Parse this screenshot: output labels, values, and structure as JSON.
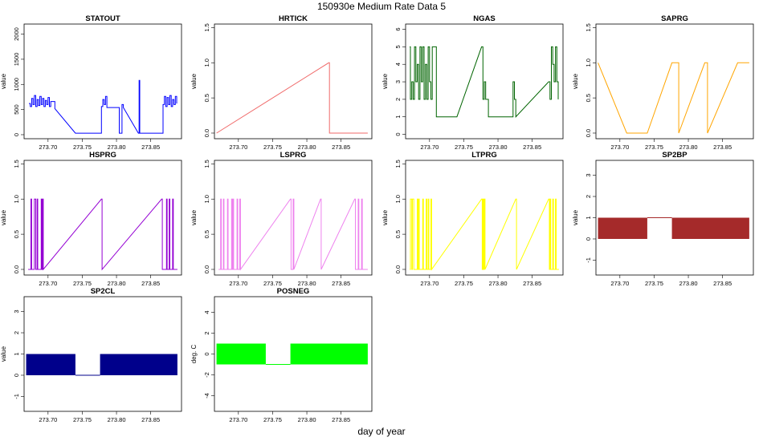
{
  "figure": {
    "title": "150930e   Medium Rate Data 5",
    "xlabel": "day of year"
  },
  "chart_data": [
    {
      "type": "line",
      "title": "STATOUT",
      "ylabel": "value",
      "color": "#0000ff",
      "xlim": [
        273.665,
        273.895
      ],
      "ylim": [
        -80,
        2200
      ],
      "xticks": [
        "273.70",
        "273.75",
        "273.80",
        "273.85"
      ],
      "xtick_values": [
        273.7,
        273.75,
        273.8,
        273.85
      ],
      "yticks": [
        "0",
        "500",
        "1000",
        "1500",
        "2000"
      ],
      "ytick_values": [
        0,
        500,
        1000,
        1500,
        2000
      ],
      "step": true,
      "x": [
        273.672,
        273.674,
        273.676,
        273.678,
        273.68,
        273.682,
        273.684,
        273.686,
        273.688,
        273.69,
        273.692,
        273.694,
        273.696,
        273.698,
        273.7,
        273.702,
        273.704,
        273.71,
        273.74,
        273.776,
        273.778,
        273.78,
        273.782,
        273.784,
        273.786,
        273.804,
        273.806,
        273.808,
        273.81,
        273.832,
        273.833,
        273.834,
        273.866,
        273.868,
        273.87,
        273.872,
        273.874,
        273.876,
        273.878,
        273.88,
        273.882,
        273.884,
        273.886,
        273.888
      ],
      "y": [
        620,
        560,
        720,
        600,
        780,
        560,
        700,
        580,
        760,
        600,
        720,
        560,
        680,
        600,
        740,
        560,
        660,
        520,
        30,
        30,
        560,
        700,
        600,
        760,
        540,
        30,
        30,
        600,
        540,
        30,
        1080,
        30,
        30,
        600,
        760,
        560,
        740,
        600,
        780,
        560,
        700,
        600,
        760,
        620
      ]
    },
    {
      "type": "line",
      "title": "HRTICK",
      "ylabel": "value",
      "color": "#f06a6a",
      "xlim": [
        273.665,
        273.895
      ],
      "ylim": [
        -0.08,
        1.55
      ],
      "xticks": [
        "273.70",
        "273.75",
        "273.80",
        "273.85"
      ],
      "xtick_values": [
        273.7,
        273.75,
        273.8,
        273.85
      ],
      "yticks": [
        "0.0",
        "0.5",
        "1.0",
        "1.5"
      ],
      "ytick_values": [
        0,
        0.5,
        1.0,
        1.5
      ],
      "step": true,
      "x": [
        273.668,
        273.832,
        273.833,
        273.889
      ],
      "y": [
        0,
        1,
        0,
        0
      ]
    },
    {
      "type": "line",
      "title": "NGAS",
      "ylabel": "value",
      "color": "#006400",
      "xlim": [
        273.665,
        273.895
      ],
      "ylim": [
        -0.25,
        6.3
      ],
      "xticks": [
        "273.70",
        "273.75",
        "273.80",
        "273.85"
      ],
      "xtick_values": [
        273.7,
        273.75,
        273.8,
        273.85
      ],
      "yticks": [
        "0",
        "1",
        "2",
        "3",
        "4",
        "5",
        "6"
      ],
      "ytick_values": [
        0,
        1,
        2,
        3,
        4,
        5,
        6
      ],
      "step": true,
      "x": [
        273.671,
        273.672,
        273.674,
        273.676,
        273.678,
        273.68,
        273.682,
        273.684,
        273.686,
        273.688,
        273.69,
        273.692,
        273.694,
        273.696,
        273.698,
        273.7,
        273.702,
        273.704,
        273.706,
        273.71,
        273.74,
        273.776,
        273.778,
        273.78,
        273.782,
        273.786,
        273.82,
        273.822,
        273.824,
        273.826,
        273.874,
        273.876,
        273.878,
        273.88,
        273.882,
        273.884,
        273.886,
        273.888
      ],
      "y": [
        5,
        2,
        3,
        2,
        5,
        3,
        4,
        2,
        5,
        3,
        5,
        2,
        4,
        2,
        5,
        3,
        2,
        5,
        5,
        1,
        1,
        5,
        2,
        3,
        2,
        1,
        1,
        3,
        2,
        1,
        3,
        2,
        5,
        4,
        3,
        5,
        3,
        2
      ]
    },
    {
      "type": "line",
      "title": "SAPRG",
      "ylabel": "value",
      "color": "#ffa500",
      "xlim": [
        273.665,
        273.895
      ],
      "ylim": [
        -0.08,
        1.55
      ],
      "xticks": [
        "273.70",
        "273.75",
        "273.80",
        "273.85"
      ],
      "xtick_values": [
        273.7,
        273.75,
        273.8,
        273.85
      ],
      "yticks": [
        "0.0",
        "0.5",
        "1.0",
        "1.5"
      ],
      "ytick_values": [
        0,
        0.5,
        1.0,
        1.5
      ],
      "step": true,
      "x": [
        273.668,
        273.71,
        273.74,
        273.776,
        273.786,
        273.824,
        273.828,
        273.872,
        273.889
      ],
      "y": [
        1,
        0,
        0,
        1,
        0,
        1,
        0,
        1,
        1
      ]
    },
    {
      "type": "line",
      "title": "HSPRG",
      "ylabel": "value",
      "color": "#9400d3",
      "xlim": [
        273.665,
        273.895
      ],
      "ylim": [
        -0.08,
        1.55
      ],
      "xticks": [
        "273.70",
        "273.75",
        "273.80",
        "273.85"
      ],
      "xtick_values": [
        273.7,
        273.75,
        273.8,
        273.85
      ],
      "yticks": [
        "0.0",
        "0.5",
        "1.0",
        "1.5"
      ],
      "ytick_values": [
        0,
        0.5,
        1.0,
        1.5
      ],
      "step": true,
      "x": [
        273.671,
        273.675,
        273.676,
        273.68,
        273.682,
        273.684,
        273.685,
        273.69,
        273.691,
        273.692,
        273.693,
        273.778,
        273.779,
        273.866,
        273.867,
        273.873,
        273.874,
        273.877,
        273.878,
        273.882,
        273.883,
        273.889
      ],
      "y": [
        0,
        1,
        0,
        1,
        0,
        1,
        0,
        1,
        0,
        1,
        0,
        1,
        0,
        1,
        0,
        1,
        0,
        1,
        0,
        1,
        0,
        0
      ]
    },
    {
      "type": "line",
      "title": "LSPRG",
      "ylabel": "value",
      "color": "#ee82ee",
      "xlim": [
        273.665,
        273.895
      ],
      "ylim": [
        -0.08,
        1.55
      ],
      "xticks": [
        "273.70",
        "273.75",
        "273.80",
        "273.85"
      ],
      "xtick_values": [
        273.7,
        273.75,
        273.8,
        273.85
      ],
      "yticks": [
        "0.0",
        "0.5",
        "1.0",
        "1.5"
      ],
      "ytick_values": [
        0,
        0.5,
        1.0,
        1.5
      ],
      "step": true,
      "x": [
        273.671,
        273.674,
        273.675,
        273.678,
        273.679,
        273.684,
        273.685,
        273.69,
        273.691,
        273.692,
        273.693,
        273.698,
        273.699,
        273.702,
        273.703,
        273.776,
        273.777,
        273.78,
        273.781,
        273.82,
        273.821,
        273.87,
        273.871,
        273.875,
        273.876,
        273.88,
        273.881,
        273.889
      ],
      "y": [
        0,
        1,
        0,
        1,
        0,
        1,
        0,
        1,
        0,
        1,
        0,
        1,
        0,
        1,
        0,
        1,
        0,
        1,
        0,
        1,
        0,
        1,
        0,
        1,
        0,
        1,
        0,
        0
      ]
    },
    {
      "type": "line",
      "title": "LTPRG",
      "ylabel": "value",
      "color": "#ffff00",
      "xlim": [
        273.665,
        273.895
      ],
      "ylim": [
        -0.08,
        1.55
      ],
      "xticks": [
        "273.70",
        "273.75",
        "273.80",
        "273.85"
      ],
      "xtick_values": [
        273.7,
        273.75,
        273.8,
        273.85
      ],
      "yticks": [
        "0.0",
        "0.5",
        "1.0",
        "1.5"
      ],
      "ytick_values": [
        0,
        0.5,
        1.0,
        1.5
      ],
      "step": true,
      "x": [
        273.671,
        273.672,
        273.674,
        273.675,
        273.677,
        273.682,
        273.683,
        273.684,
        273.685,
        273.69,
        273.691,
        273.695,
        273.696,
        273.698,
        273.699,
        273.702,
        273.703,
        273.776,
        273.777,
        273.778,
        273.779,
        273.78,
        273.781,
        273.826,
        273.827,
        273.874,
        273.875,
        273.876,
        273.877,
        273.88,
        273.881,
        273.884,
        273.885,
        273.889
      ],
      "y": [
        0,
        1,
        0,
        1,
        0,
        1,
        0,
        1,
        0,
        1,
        0,
        1,
        0,
        1,
        0,
        1,
        0,
        1,
        0,
        1,
        0,
        1,
        0,
        1,
        0,
        1,
        0,
        1,
        0,
        1,
        0,
        1,
        0,
        0
      ]
    },
    {
      "type": "area",
      "title": "SP2BP",
      "ylabel": "value",
      "color": "#a52a2a",
      "xlim": [
        273.665,
        273.895
      ],
      "ylim": [
        -1.7,
        3.7
      ],
      "xticks": [
        "273.70",
        "273.75",
        "273.80",
        "273.85"
      ],
      "xtick_values": [
        273.7,
        273.75,
        273.8,
        273.85
      ],
      "yticks": [
        "-1",
        "0",
        "1",
        "2",
        "3"
      ],
      "ytick_values": [
        -1,
        0,
        1,
        2,
        3
      ],
      "bands": [
        [
          273.668,
          273.74,
          0,
          1
        ],
        [
          273.776,
          273.889,
          0,
          1
        ]
      ],
      "line": [
        [
          273.74,
          1
        ],
        [
          273.776,
          1
        ]
      ]
    },
    {
      "type": "area",
      "title": "SP2CL",
      "ylabel": "value",
      "color": "#00008b",
      "xlim": [
        273.665,
        273.895
      ],
      "ylim": [
        -1.7,
        3.7
      ],
      "xticks": [
        "273.70",
        "273.75",
        "273.80",
        "273.85"
      ],
      "xtick_values": [
        273.7,
        273.75,
        273.8,
        273.85
      ],
      "yticks": [
        "-1",
        "0",
        "1",
        "2",
        "3"
      ],
      "ytick_values": [
        -1,
        0,
        1,
        2,
        3
      ],
      "bands": [
        [
          273.668,
          273.74,
          0,
          1
        ],
        [
          273.776,
          273.889,
          0,
          1
        ]
      ],
      "line": [
        [
          273.74,
          0
        ],
        [
          273.776,
          0
        ]
      ]
    },
    {
      "type": "area",
      "title": "POSNEG",
      "ylabel": "deg. C",
      "color": "#00ff00",
      "xlim": [
        273.665,
        273.895
      ],
      "ylim": [
        -5.5,
        5.5
      ],
      "xticks": [
        "273.70",
        "273.75",
        "273.80",
        "273.85"
      ],
      "xtick_values": [
        273.7,
        273.75,
        273.8,
        273.85
      ],
      "yticks": [
        "-4",
        "-2",
        "0",
        "2",
        "4"
      ],
      "ytick_values": [
        -4,
        -2,
        0,
        2,
        4
      ],
      "bands": [
        [
          273.668,
          273.74,
          -1,
          1
        ],
        [
          273.776,
          273.889,
          -1,
          1
        ]
      ],
      "line": [
        [
          273.74,
          -1
        ],
        [
          273.776,
          -1
        ]
      ]
    }
  ]
}
